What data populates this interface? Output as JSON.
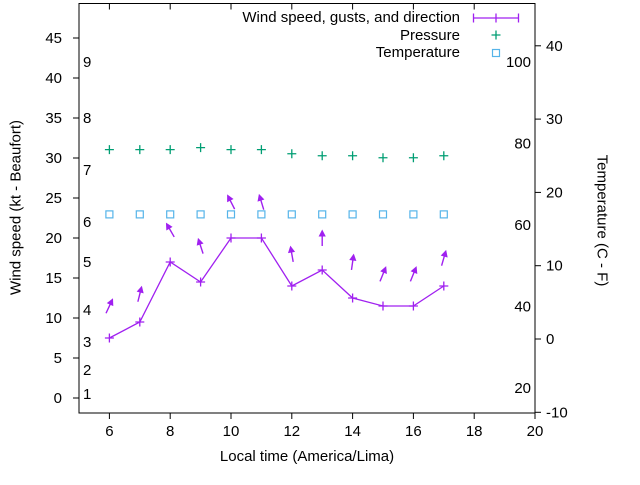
{
  "figure": {
    "xlabel": "Local time (America/Lima)",
    "ylabel_left": "Wind speed (kt - Beaufort)",
    "ylabel_right": "Temperature (C - F)"
  },
  "legend": {
    "items": [
      {
        "label": "Wind speed, gusts, and direction",
        "marker": "line-with-end-ticks-and-cross",
        "color": "#a020f0"
      },
      {
        "label": "Pressure",
        "marker": "plus",
        "color": "#009e73"
      },
      {
        "label": "Temperature",
        "marker": "open-square",
        "color": "#56b4e9"
      }
    ]
  },
  "chart_data": {
    "type": "line",
    "title": "",
    "xlabel": "Local time (America/Lima)",
    "ylabel_left": "Wind speed (kt - Beaufort)",
    "ylabel_right": "Temperature (C - F)",
    "x_axis": {
      "range": [
        5,
        20
      ],
      "ticks": [
        6,
        8,
        10,
        12,
        14,
        16,
        18,
        20
      ],
      "unit": "hour of day"
    },
    "y_left_axis": {
      "unit": "kt",
      "kt_ticks": [
        0,
        5,
        10,
        15,
        20,
        25,
        30,
        35,
        40,
        45
      ],
      "beaufort_labels": [
        {
          "beaufort": "1",
          "kt": 0.5
        },
        {
          "beaufort": "2",
          "kt": 3.5
        },
        {
          "beaufort": "3",
          "kt": 7
        },
        {
          "beaufort": "4",
          "kt": 11
        },
        {
          "beaufort": "5",
          "kt": 17
        },
        {
          "beaufort": "6",
          "kt": 22
        },
        {
          "beaufort": "7",
          "kt": 28.5
        },
        {
          "beaufort": "8",
          "kt": 35
        },
        {
          "beaufort": "9",
          "kt": 42
        }
      ]
    },
    "y_right_axis": {
      "celsius_ticks": [
        -10,
        0,
        10,
        20,
        30,
        40
      ],
      "fahrenheit_ticks": [
        20,
        40,
        60,
        80,
        100
      ]
    },
    "hours": [
      6,
      7,
      8,
      9,
      10,
      11,
      12,
      13,
      14,
      15,
      16,
      17
    ],
    "series": [
      {
        "name": "Wind speed, gusts, and direction",
        "type": "line",
        "marker": "plus",
        "color": "#a020f0",
        "speed_kt": [
          7.5,
          9.5,
          17,
          14.5,
          20,
          20,
          14,
          16,
          12.5,
          11.5,
          11.5,
          14
        ],
        "gust_kt": [
          11.5,
          13,
          21,
          19,
          24.5,
          24.5,
          18,
          20,
          17,
          15.5,
          15.5,
          17.5
        ],
        "direction_deg": [
          25,
          14,
          -30,
          -18,
          -27,
          -17,
          -10,
          0,
          8,
          22,
          22,
          16
        ],
        "direction_convention": "arrow angle, 0 = pointing straight up, positive = tilted clockwise/right"
      },
      {
        "name": "Pressure",
        "type": "scatter",
        "marker": "plus",
        "color": "#009e73",
        "values": [
          78.5,
          78.5,
          78.5,
          79,
          78.5,
          78.5,
          77.5,
          77,
          77,
          76.5,
          76.5,
          77
        ],
        "value_scale": "right inner axis (20-100)"
      },
      {
        "name": "Temperature",
        "type": "scatter",
        "marker": "open-square",
        "color": "#56b4e9",
        "celsius": [
          17,
          17,
          17,
          17,
          17,
          17,
          17,
          17,
          17,
          17,
          17,
          17
        ]
      }
    ]
  }
}
